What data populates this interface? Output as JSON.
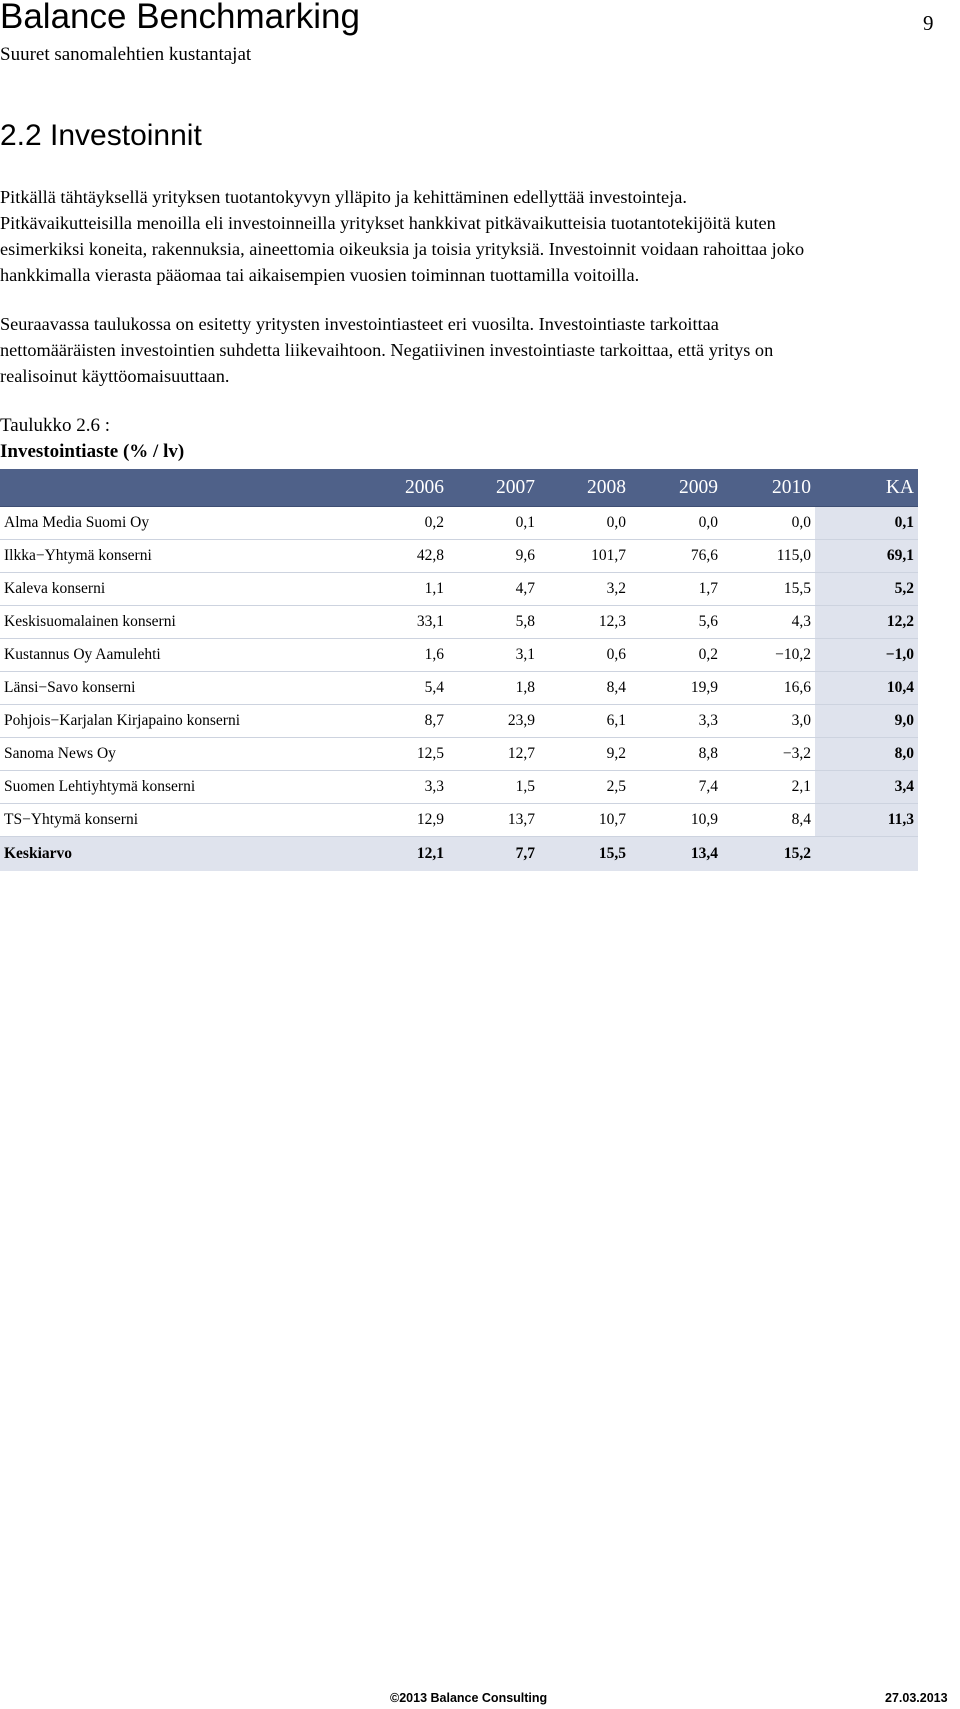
{
  "header": {
    "brand": "Balance Benchmarking",
    "subtitle": "Suuret sanomalehtien kustantajat",
    "page_number": "9"
  },
  "section": {
    "heading": "2.2 Investoinnit",
    "paragraph1": [
      "Pitkällä tähtäyksellä yrityksen tuotantokyvyn ylläpito ja kehittäminen edellyttää investointeja.",
      "Pitkävaikutteisilla menoilla eli investoinneilla yritykset hankkivat pitkävaikutteisia tuotantotekijöitä kuten",
      "esimerkiksi koneita, rakennuksia, aineettomia oikeuksia ja toisia yrityksiä. Investoinnit voidaan rahoittaa joko",
      "hankkimalla vierasta pääomaa tai aikaisempien vuosien toiminnan tuottamilla voitoilla."
    ],
    "paragraph2": [
      "Seuraavassa taulukossa on esitetty yritysten investointiasteet eri vuosilta. Investointiaste tarkoittaa",
      "nettomääräisten investointien suhdetta liikevaihtoon. Negatiivinen investointiaste tarkoittaa, että yritys on",
      "realisoinut käyttöomaisuuttaan."
    ]
  },
  "table": {
    "caption_number": "Taulukko 2.6 :",
    "caption_title": "Investointiaste (% / lv)",
    "columns": [
      "",
      "2006",
      "2007",
      "2008",
      "2009",
      "2010",
      "KA"
    ],
    "rows": [
      {
        "name": "Alma Media Suomi Oy",
        "v2006": "0,2",
        "v2007": "0,1",
        "v2008": "0,0",
        "v2009": "0,0",
        "v2010": "0,0",
        "ka": "0,1"
      },
      {
        "name": "Ilkka−Yhtymä konserni",
        "v2006": "42,8",
        "v2007": "9,6",
        "v2008": "101,7",
        "v2009": "76,6",
        "v2010": "115,0",
        "ka": "69,1"
      },
      {
        "name": "Kaleva konserni",
        "v2006": "1,1",
        "v2007": "4,7",
        "v2008": "3,2",
        "v2009": "1,7",
        "v2010": "15,5",
        "ka": "5,2"
      },
      {
        "name": "Keskisuomalainen konserni",
        "v2006": "33,1",
        "v2007": "5,8",
        "v2008": "12,3",
        "v2009": "5,6",
        "v2010": "4,3",
        "ka": "12,2"
      },
      {
        "name": "Kustannus Oy Aamulehti",
        "v2006": "1,6",
        "v2007": "3,1",
        "v2008": "0,6",
        "v2009": "0,2",
        "v2010": "−10,2",
        "ka": "−1,0"
      },
      {
        "name": "Länsi−Savo konserni",
        "v2006": "5,4",
        "v2007": "1,8",
        "v2008": "8,4",
        "v2009": "19,9",
        "v2010": "16,6",
        "ka": "10,4"
      },
      {
        "name": "Pohjois−Karjalan Kirjapaino konserni",
        "v2006": "8,7",
        "v2007": "23,9",
        "v2008": "6,1",
        "v2009": "3,3",
        "v2010": "3,0",
        "ka": "9,0"
      },
      {
        "name": "Sanoma News Oy",
        "v2006": "12,5",
        "v2007": "12,7",
        "v2008": "9,2",
        "v2009": "8,8",
        "v2010": "−3,2",
        "ka": "8,0"
      },
      {
        "name": "Suomen Lehtiyhtymä konserni",
        "v2006": "3,3",
        "v2007": "1,5",
        "v2008": "2,5",
        "v2009": "7,4",
        "v2010": "2,1",
        "ka": "3,4"
      },
      {
        "name": "TS−Yhtymä konserni",
        "v2006": "12,9",
        "v2007": "13,7",
        "v2008": "10,7",
        "v2009": "10,9",
        "v2010": "8,4",
        "ka": "11,3"
      }
    ],
    "average": {
      "name": "Keskiarvo",
      "v2006": "12,1",
      "v2007": "7,7",
      "v2008": "15,5",
      "v2009": "13,4",
      "v2010": "15,2",
      "ka": ""
    }
  },
  "colors": {
    "table_header_bg": "#4f6189",
    "table_header_text": "#ffffff",
    "highlight_bg": "#dfe3ed"
  },
  "footer": {
    "copyright": "©2013 Balance Consulting",
    "date": "27.03.2013"
  }
}
